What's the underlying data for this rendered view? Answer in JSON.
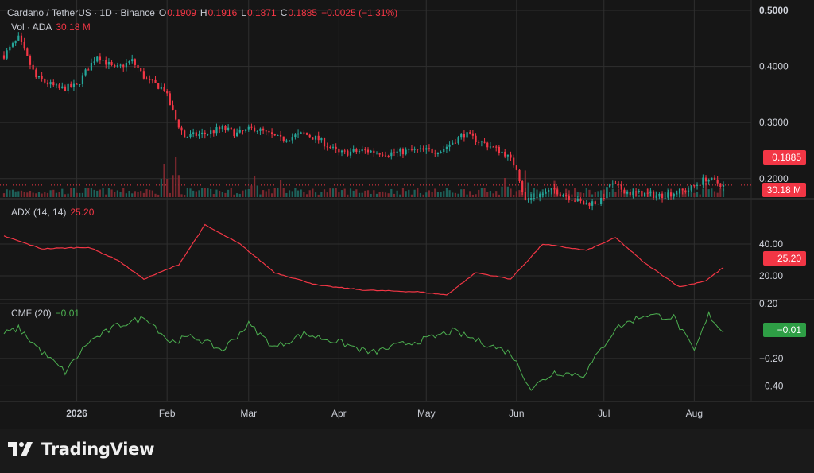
{
  "app": {
    "brand": "TradingView"
  },
  "legend": {
    "symbol": "Cardano / TetherUS · 1D · Binance",
    "o_label": "O",
    "o_value": "0.1909",
    "h_label": "H",
    "h_value": "0.1916",
    "l_label": "L",
    "l_value": "0.1871",
    "c_label": "C",
    "c_value": "0.1885",
    "change": "−0.0025 (−1.31%)",
    "vol_label": "Vol · ADA",
    "vol_value": "30.18 M",
    "adx_label": "ADX (14, 14)",
    "adx_value": "25.20",
    "cmf_label": "CMF (20)",
    "cmf_value": "−0.01"
  },
  "badges": {
    "price": "0.1885",
    "volume": "30.18 M",
    "adx": "25.20",
    "cmf": "−0.01"
  },
  "colors": {
    "up": "#26a69a",
    "down": "#f23645",
    "adx_line": "#f23645",
    "cmf_line": "#4caf50",
    "grid": "#2f2f2f"
  },
  "chart_data": [
    {
      "type": "candlestick",
      "title": "Cardano / TetherUS · 1D · Binance",
      "x_range": [
        "2025-12-07",
        "2026-08-11"
      ],
      "x_tick_labels": [
        {
          "label": "2026",
          "date": "2026-01-01"
        },
        {
          "label": "Feb",
          "date": "2026-02-01"
        },
        {
          "label": "Mar",
          "date": "2026-03-01"
        },
        {
          "label": "Apr",
          "date": "2026-04-01"
        },
        {
          "label": "May",
          "date": "2026-05-01"
        },
        {
          "label": "Jun",
          "date": "2026-06-01"
        },
        {
          "label": "Jul",
          "date": "2026-07-01"
        },
        {
          "label": "Aug",
          "date": "2026-08-01"
        }
      ],
      "y_ticks": [
        0.2,
        0.3,
        0.4,
        0.5
      ],
      "y_tick_labels": [
        "0.2000",
        "0.3000",
        "0.4000",
        "0.5000"
      ],
      "ylim": [
        0.16,
        0.5
      ],
      "last_close": 0.1885,
      "price_path": [
        [
          "2025-12-07",
          0.42
        ],
        [
          "2025-12-12",
          0.45
        ],
        [
          "2025-12-18",
          0.38
        ],
        [
          "2025-12-26",
          0.36
        ],
        [
          "2026-01-01",
          0.365
        ],
        [
          "2026-01-04",
          0.39
        ],
        [
          "2026-01-08",
          0.42
        ],
        [
          "2026-01-14",
          0.395
        ],
        [
          "2026-01-20",
          0.41
        ],
        [
          "2026-01-25",
          0.375
        ],
        [
          "2026-01-31",
          0.36
        ],
        [
          "2026-02-04",
          0.305
        ],
        [
          "2026-02-07",
          0.275
        ],
        [
          "2026-02-14",
          0.28
        ],
        [
          "2026-02-20",
          0.29
        ],
        [
          "2026-02-25",
          0.28
        ],
        [
          "2026-03-03",
          0.29
        ],
        [
          "2026-03-12",
          0.27
        ],
        [
          "2026-03-20",
          0.28
        ],
        [
          "2026-03-25",
          0.27
        ],
        [
          "2026-04-01",
          0.245
        ],
        [
          "2026-04-10",
          0.25
        ],
        [
          "2026-04-18",
          0.245
        ],
        [
          "2026-04-26",
          0.25
        ],
        [
          "2026-05-06",
          0.25
        ],
        [
          "2026-05-14",
          0.28
        ],
        [
          "2026-05-20",
          0.265
        ],
        [
          "2026-05-28",
          0.245
        ],
        [
          "2026-06-01",
          0.22
        ],
        [
          "2026-06-04",
          0.16
        ],
        [
          "2026-06-08",
          0.17
        ],
        [
          "2026-06-14",
          0.18
        ],
        [
          "2026-06-24",
          0.155
        ],
        [
          "2026-06-30",
          0.16
        ],
        [
          "2026-07-03",
          0.19
        ],
        [
          "2026-07-10",
          0.175
        ],
        [
          "2026-07-20",
          0.17
        ],
        [
          "2026-07-30",
          0.18
        ],
        [
          "2026-08-05",
          0.2
        ],
        [
          "2026-08-11",
          0.1885
        ]
      ]
    },
    {
      "type": "bar",
      "title": "Vol · ADA",
      "last_value": "30.18 M",
      "spikes": [
        [
          "2026-01-31",
          3.5
        ],
        [
          "2026-02-04",
          4.2
        ],
        [
          "2026-03-03",
          2.2
        ],
        [
          "2026-03-12",
          1.8
        ],
        [
          "2026-05-28",
          2.0
        ],
        [
          "2026-06-04",
          2.8
        ],
        [
          "2026-06-14",
          1.7
        ],
        [
          "2026-08-05",
          1.5
        ]
      ]
    },
    {
      "type": "line",
      "title": "ADX (14, 14)",
      "y_ticks": [
        20,
        40
      ],
      "y_tick_labels": [
        "20.00",
        "40.00"
      ],
      "ylim": [
        5,
        60
      ],
      "last_value": 25.2,
      "points": [
        [
          "2025-12-07",
          45
        ],
        [
          "2025-12-20",
          37
        ],
        [
          "2026-01-05",
          38
        ],
        [
          "2026-01-15",
          30
        ],
        [
          "2026-01-24",
          18
        ],
        [
          "2026-02-05",
          27
        ],
        [
          "2026-02-14",
          52
        ],
        [
          "2026-02-26",
          40
        ],
        [
          "2026-03-10",
          22
        ],
        [
          "2026-03-25",
          14
        ],
        [
          "2026-04-10",
          11
        ],
        [
          "2026-04-28",
          10
        ],
        [
          "2026-05-08",
          8
        ],
        [
          "2026-05-18",
          22
        ],
        [
          "2026-05-30",
          18
        ],
        [
          "2026-06-10",
          40
        ],
        [
          "2026-06-25",
          36
        ],
        [
          "2026-07-05",
          44
        ],
        [
          "2026-07-15",
          28
        ],
        [
          "2026-07-27",
          13
        ],
        [
          "2026-08-05",
          17
        ],
        [
          "2026-08-11",
          25.2
        ]
      ]
    },
    {
      "type": "line",
      "title": "CMF (20)",
      "y_ticks": [
        0.2,
        -0.2,
        -0.4
      ],
      "y_tick_labels": [
        "0.20",
        "−0.20",
        "−0.40"
      ],
      "ylim": [
        -0.45,
        0.2
      ],
      "zero_line": true,
      "last_value": -0.01,
      "points": [
        [
          "2025-12-07",
          -0.02
        ],
        [
          "2025-12-12",
          0.02
        ],
        [
          "2025-12-20",
          -0.15
        ],
        [
          "2025-12-28",
          -0.3
        ],
        [
          "2026-01-05",
          -0.08
        ],
        [
          "2026-01-15",
          0.04
        ],
        [
          "2026-01-25",
          0.1
        ],
        [
          "2026-02-02",
          -0.08
        ],
        [
          "2026-02-10",
          -0.04
        ],
        [
          "2026-02-20",
          -0.14
        ],
        [
          "2026-03-01",
          0.05
        ],
        [
          "2026-03-10",
          -0.12
        ],
        [
          "2026-03-20",
          -0.02
        ],
        [
          "2026-04-01",
          -0.08
        ],
        [
          "2026-04-12",
          -0.16
        ],
        [
          "2026-04-22",
          -0.1
        ],
        [
          "2026-05-01",
          -0.06
        ],
        [
          "2026-05-10",
          0.0
        ],
        [
          "2026-05-20",
          -0.08
        ],
        [
          "2026-05-30",
          -0.16
        ],
        [
          "2026-06-06",
          -0.42
        ],
        [
          "2026-06-14",
          -0.3
        ],
        [
          "2026-06-24",
          -0.32
        ],
        [
          "2026-07-05",
          0.02
        ],
        [
          "2026-07-15",
          0.12
        ],
        [
          "2026-07-25",
          0.1
        ],
        [
          "2026-08-01",
          -0.15
        ],
        [
          "2026-08-06",
          0.12
        ],
        [
          "2026-08-11",
          -0.01
        ]
      ]
    }
  ]
}
